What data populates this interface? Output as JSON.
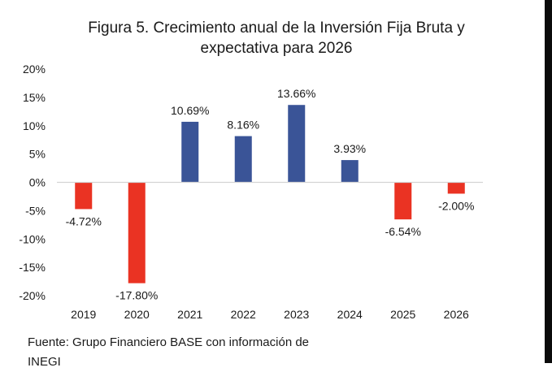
{
  "chart_data": {
    "type": "bar",
    "title": "Figura 5. Crecimiento anual de la Inversión Fija Bruta y expectativa para 2026",
    "title_lines": [
      "Figura 5. Crecimiento anual de la Inversión Fija Bruta y",
      "expectativa para 2026"
    ],
    "categories": [
      "2019",
      "2020",
      "2021",
      "2022",
      "2023",
      "2024",
      "2025",
      "2026"
    ],
    "values": [
      -4.72,
      -17.8,
      10.69,
      8.16,
      13.66,
      3.93,
      -6.54,
      -2.0
    ],
    "data_labels": [
      "-4.72%",
      "-17.80%",
      "10.69%",
      "8.16%",
      "13.66%",
      "3.93%",
      "-6.54%",
      "-2.00%"
    ],
    "ylim": [
      -20,
      20
    ],
    "yticks": [
      20,
      15,
      10,
      5,
      0,
      -5,
      -10,
      -15,
      -20
    ],
    "ytick_labels": [
      "20%",
      "15%",
      "10%",
      "5%",
      "0%",
      "-5%",
      "-10%",
      "-15%",
      "-20%"
    ],
    "xlabel": "",
    "ylabel": "",
    "grid": false,
    "colors": {
      "positive": "#3a5497",
      "negative": "#ea3323"
    },
    "source": [
      "Fuente: Grupo Financiero BASE con información de",
      "INEGI"
    ]
  }
}
